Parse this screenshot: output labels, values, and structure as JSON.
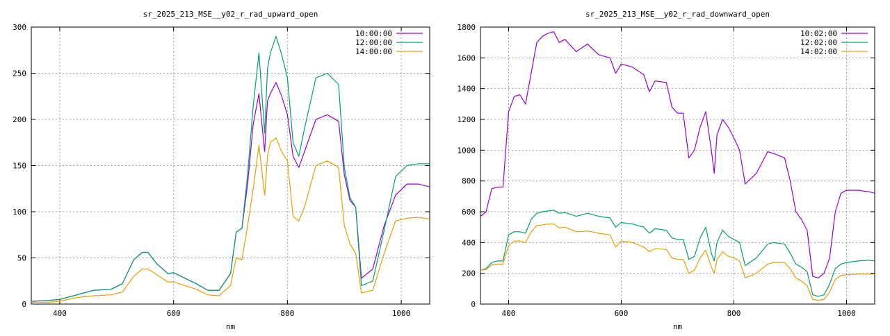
{
  "chart_data": [
    {
      "type": "line",
      "title": "sr_2025_213_MSE__y02_r_rad_upward_open",
      "xlabel": "nm",
      "ylabel": "",
      "xlim": [
        350,
        1050
      ],
      "ylim": [
        0,
        300
      ],
      "xticks": [
        400,
        600,
        800,
        1000
      ],
      "yticks": [
        0,
        50,
        100,
        150,
        200,
        250,
        300
      ],
      "grid": true,
      "legend": "top-right",
      "series": [
        {
          "name": "10:00:00",
          "color": "#9400d3",
          "x": [
            350,
            380,
            400,
            430,
            460,
            490,
            510,
            530,
            545,
            555,
            570,
            590,
            600,
            620,
            640,
            660,
            680,
            700,
            710,
            720,
            730,
            740,
            750,
            760,
            765,
            770,
            780,
            790,
            800,
            810,
            820,
            830,
            850,
            870,
            890,
            900,
            910,
            920,
            930,
            950,
            970,
            990,
            1010,
            1030,
            1050
          ],
          "y": [
            3,
            4,
            5,
            10,
            15,
            16,
            22,
            48,
            56,
            56,
            44,
            33,
            34,
            28,
            22,
            15,
            15,
            33,
            78,
            82,
            130,
            195,
            228,
            165,
            220,
            228,
            240,
            225,
            205,
            160,
            148,
            165,
            200,
            205,
            198,
            140,
            112,
            105,
            28,
            38,
            85,
            118,
            130,
            130,
            127
          ]
        },
        {
          "name": "12:00:00",
          "color": "#009e73",
          "x": [
            350,
            380,
            400,
            430,
            460,
            490,
            510,
            530,
            545,
            555,
            570,
            590,
            600,
            620,
            640,
            660,
            680,
            700,
            710,
            720,
            730,
            740,
            750,
            760,
            765,
            770,
            780,
            790,
            800,
            810,
            820,
            830,
            850,
            870,
            890,
            900,
            910,
            920,
            930,
            950,
            970,
            990,
            1010,
            1030,
            1050
          ],
          "y": [
            3,
            4,
            5,
            10,
            15,
            16,
            22,
            48,
            56,
            56,
            44,
            33,
            34,
            28,
            22,
            15,
            15,
            33,
            78,
            82,
            140,
            215,
            272,
            185,
            255,
            272,
            290,
            270,
            245,
            175,
            160,
            190,
            245,
            250,
            238,
            148,
            115,
            105,
            20,
            25,
            80,
            138,
            150,
            152,
            152
          ]
        },
        {
          "name": "14:00:00",
          "color": "#e69f00",
          "x": [
            350,
            380,
            400,
            430,
            460,
            490,
            510,
            530,
            545,
            555,
            570,
            590,
            600,
            620,
            640,
            660,
            680,
            700,
            710,
            720,
            730,
            740,
            750,
            760,
            765,
            770,
            780,
            790,
            800,
            810,
            820,
            830,
            850,
            870,
            890,
            900,
            910,
            920,
            930,
            950,
            970,
            990,
            1010,
            1030,
            1050
          ],
          "y": [
            2,
            2,
            3,
            7,
            9,
            10,
            13,
            30,
            38,
            38,
            32,
            24,
            24,
            20,
            16,
            10,
            9,
            20,
            50,
            48,
            85,
            125,
            172,
            118,
            160,
            175,
            180,
            165,
            155,
            95,
            90,
            105,
            150,
            155,
            148,
            85,
            65,
            55,
            12,
            15,
            55,
            90,
            93,
            94,
            92
          ]
        }
      ]
    },
    {
      "type": "line",
      "title": "sr_2025_213_MSE__y02_r_rad_downward_open",
      "xlabel": "nm",
      "ylabel": "",
      "xlim": [
        350,
        1050
      ],
      "ylim": [
        0,
        1800
      ],
      "xticks": [
        400,
        600,
        800,
        1000
      ],
      "yticks": [
        0,
        200,
        400,
        600,
        800,
        1000,
        1200,
        1400,
        1600,
        1800
      ],
      "grid": true,
      "legend": "top-right",
      "series": [
        {
          "name": "10:02:00",
          "color": "#9400d3",
          "x": [
            350,
            360,
            370,
            380,
            390,
            400,
            410,
            420,
            430,
            440,
            450,
            460,
            470,
            480,
            490,
            500,
            520,
            540,
            560,
            580,
            590,
            600,
            620,
            640,
            650,
            660,
            680,
            690,
            700,
            710,
            720,
            730,
            740,
            750,
            760,
            765,
            770,
            780,
            790,
            800,
            810,
            820,
            840,
            860,
            870,
            890,
            900,
            910,
            920,
            930,
            940,
            950,
            960,
            970,
            980,
            990,
            1000,
            1020,
            1040,
            1050
          ],
          "y": [
            570,
            600,
            750,
            760,
            760,
            1250,
            1350,
            1360,
            1300,
            1500,
            1700,
            1740,
            1760,
            1770,
            1700,
            1720,
            1640,
            1690,
            1620,
            1600,
            1500,
            1560,
            1540,
            1490,
            1380,
            1450,
            1440,
            1280,
            1240,
            1240,
            950,
            1000,
            1150,
            1250,
            1000,
            850,
            1100,
            1200,
            1150,
            1080,
            1000,
            780,
            850,
            990,
            980,
            950,
            800,
            600,
            550,
            480,
            180,
            170,
            200,
            300,
            600,
            720,
            740,
            740,
            730,
            720
          ]
        },
        {
          "name": "12:02:00",
          "color": "#009e73",
          "x": [
            350,
            360,
            370,
            380,
            390,
            400,
            410,
            420,
            430,
            440,
            450,
            460,
            470,
            480,
            490,
            500,
            520,
            540,
            560,
            580,
            590,
            600,
            620,
            640,
            650,
            660,
            680,
            690,
            700,
            710,
            720,
            730,
            740,
            750,
            760,
            765,
            770,
            780,
            790,
            800,
            810,
            820,
            840,
            860,
            870,
            890,
            900,
            910,
            920,
            930,
            940,
            950,
            960,
            970,
            980,
            990,
            1000,
            1020,
            1040,
            1050
          ],
          "y": [
            220,
            230,
            270,
            280,
            280,
            450,
            470,
            470,
            460,
            550,
            590,
            600,
            605,
            610,
            590,
            595,
            570,
            590,
            570,
            560,
            500,
            530,
            520,
            500,
            460,
            490,
            480,
            430,
            420,
            420,
            290,
            310,
            430,
            500,
            330,
            280,
            400,
            480,
            440,
            420,
            400,
            250,
            300,
            390,
            400,
            390,
            330,
            260,
            240,
            210,
            60,
            50,
            60,
            130,
            230,
            260,
            270,
            280,
            285,
            280
          ]
        },
        {
          "name": "14:02:00",
          "color": "#e69f00",
          "x": [
            350,
            360,
            370,
            380,
            390,
            400,
            410,
            420,
            430,
            440,
            450,
            460,
            470,
            480,
            490,
            500,
            520,
            540,
            560,
            580,
            590,
            600,
            620,
            640,
            650,
            660,
            680,
            690,
            700,
            710,
            720,
            730,
            740,
            750,
            760,
            765,
            770,
            780,
            790,
            800,
            810,
            820,
            840,
            860,
            870,
            890,
            900,
            910,
            920,
            930,
            940,
            950,
            960,
            970,
            980,
            990,
            1000,
            1020,
            1040,
            1050
          ],
          "y": [
            220,
            225,
            255,
            260,
            260,
            380,
            410,
            410,
            400,
            470,
            510,
            515,
            520,
            520,
            495,
            500,
            470,
            475,
            460,
            450,
            370,
            410,
            400,
            370,
            340,
            360,
            355,
            300,
            290,
            290,
            200,
            220,
            300,
            350,
            240,
            200,
            290,
            340,
            310,
            300,
            280,
            170,
            200,
            260,
            270,
            270,
            230,
            170,
            150,
            120,
            30,
            25,
            30,
            80,
            160,
            185,
            190,
            195,
            195,
            195
          ]
        }
      ]
    }
  ]
}
